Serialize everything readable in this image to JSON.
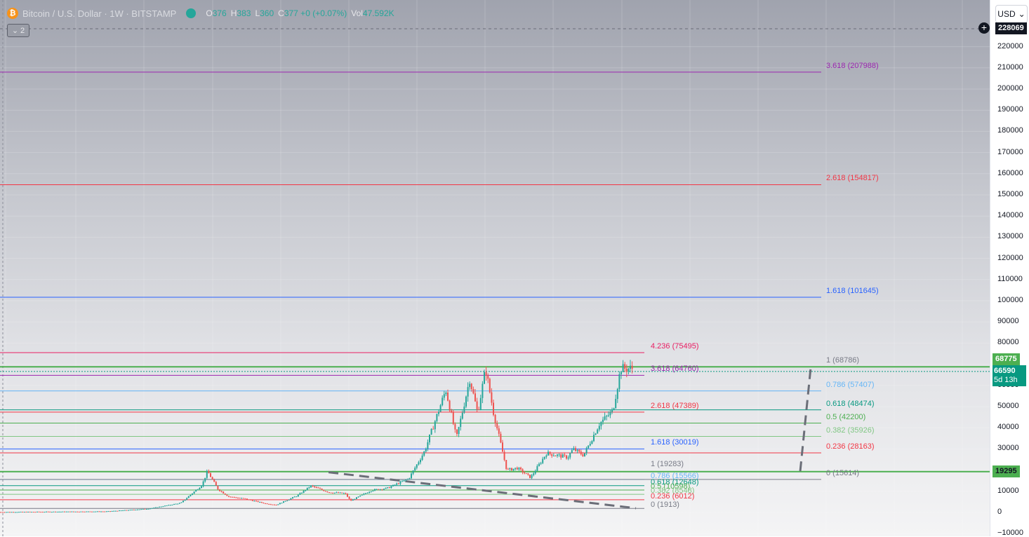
{
  "header": {
    "symbol_icon": "bitcoin-icon",
    "title": "Bitcoin / U.S. Dollar · 1W · BITSTAMP",
    "ohlc": [
      {
        "k": "O",
        "v": "376"
      },
      {
        "k": "H",
        "v": "383"
      },
      {
        "k": "L",
        "v": "360"
      },
      {
        "k": "C",
        "v": "377 +0 (+0.07%)"
      },
      {
        "k": "Vol",
        "v": "47.592K"
      }
    ],
    "collapse_count": "2"
  },
  "price_scale": {
    "currency": "USD",
    "top_value": "228069",
    "ticks": [
      "220000",
      "210000",
      "200000",
      "190000",
      "180000",
      "170000",
      "160000",
      "150000",
      "140000",
      "130000",
      "120000",
      "110000",
      "100000",
      "90000",
      "80000",
      "70000",
      "60000",
      "50000",
      "40000",
      "30000",
      "20000",
      "10000",
      "0",
      "−10000"
    ],
    "tags": {
      "high": "68775",
      "last": "66590",
      "countdown": "5d 13h",
      "low": "19295"
    }
  },
  "fib_labels": {
    "ext_long": [
      {
        "text": "3.618 (207988)",
        "color": "#9c27b0",
        "price": 207988
      },
      {
        "text": "2.618 (154817)",
        "color": "#f23645",
        "price": 154817
      },
      {
        "text": "1.618 (101645)",
        "color": "#2962ff",
        "price": 101645
      }
    ],
    "ext_short": [
      {
        "text": "4.236 (75495)",
        "color": "#e91e63",
        "price": 75495
      },
      {
        "text": "3.618 (64760)",
        "color": "#9c27b0",
        "price": 64760
      },
      {
        "text": "2.618 (47389)",
        "color": "#f23645",
        "price": 47389
      },
      {
        "text": "1.618 (30019)",
        "color": "#2962ff",
        "price": 30019
      }
    ],
    "retr_small": [
      {
        "text": "1 (19283)",
        "color": "#787b86",
        "price": 19283
      },
      {
        "text": "0.786 (15566)",
        "color": "#64b5f6",
        "price": 15566
      },
      {
        "text": "0.618 (12648)",
        "color": "#089981",
        "price": 12648
      },
      {
        "text": "0.5 (10598)",
        "color": "#4caf50",
        "price": 10598
      },
      {
        "text": "0.382 (8548)",
        "color": "#81c784",
        "price": 8548
      },
      {
        "text": "0.236 (6012)",
        "color": "#f23645",
        "price": 6012
      },
      {
        "text": "0 (1913)",
        "color": "#787b86",
        "price": 1913
      }
    ],
    "retr_big": [
      {
        "text": "1 (68786)",
        "color": "#787b86",
        "price": 68786
      },
      {
        "text": "0.786 (57407)",
        "color": "#64b5f6",
        "price": 57407
      },
      {
        "text": "0.618 (48474)",
        "color": "#089981",
        "price": 48474
      },
      {
        "text": "0.5 (42200)",
        "color": "#4caf50",
        "price": 42200
      },
      {
        "text": "0.382 (35926)",
        "color": "#81c784",
        "price": 35926
      },
      {
        "text": "0.236 (28163)",
        "color": "#f23645",
        "price": 28163
      },
      {
        "text": "0 (15614)",
        "color": "#787b86",
        "price": 15614
      }
    ]
  },
  "chart_data": {
    "type": "candlestick",
    "symbol": "Bitcoin / U.S. Dollar",
    "interval": "1W",
    "exchange": "BITSTAMP",
    "ylim": [
      -10000,
      228069
    ],
    "grid": true,
    "colors": {
      "up": "#26a69a",
      "down": "#ef5350"
    },
    "price_path": [
      [
        0,
        200
      ],
      [
        0.2,
        500
      ],
      [
        0.28,
        1800
      ],
      [
        0.34,
        4500
      ],
      [
        0.38,
        13000
      ],
      [
        0.39,
        19500
      ],
      [
        0.41,
        11000
      ],
      [
        0.43,
        7500
      ],
      [
        0.46,
        6500
      ],
      [
        0.5,
        4200
      ],
      [
        0.52,
        3600
      ],
      [
        0.56,
        8000
      ],
      [
        0.585,
        12500
      ],
      [
        0.62,
        9500
      ],
      [
        0.65,
        9000
      ],
      [
        0.66,
        5500
      ],
      [
        0.7,
        10500
      ],
      [
        0.73,
        11500
      ],
      [
        0.77,
        16000
      ],
      [
        0.8,
        29000
      ],
      [
        0.84,
        58000
      ],
      [
        0.86,
        35000
      ],
      [
        0.885,
        63000
      ],
      [
        0.9,
        47000
      ],
      [
        0.915,
        68000
      ],
      [
        0.93,
        47000
      ],
      [
        0.955,
        20000
      ],
      [
        0.975,
        21000
      ],
      [
        1.0,
        16500
      ],
      [
        1.03,
        28000
      ],
      [
        1.07,
        26000
      ],
      [
        1.08,
        30000
      ],
      [
        1.1,
        27000
      ],
      [
        1.13,
        42000
      ],
      [
        1.155,
        48000
      ],
      [
        1.17,
        68000
      ]
    ],
    "trendlines": [
      {
        "from": [
          0.62,
          19000
        ],
        "to": [
          1.2,
          2000
        ],
        "style": "dashed"
      },
      {
        "from": [
          1.51,
          19500
        ],
        "to": [
          1.53,
          68786
        ],
        "style": "dashed"
      }
    ]
  }
}
